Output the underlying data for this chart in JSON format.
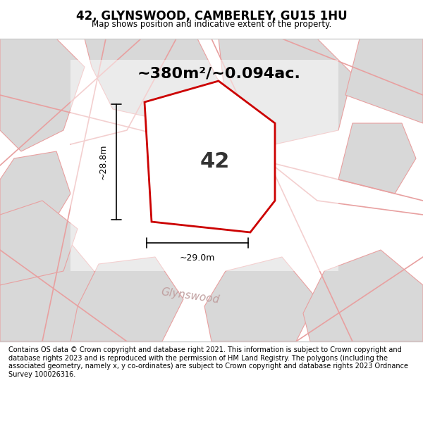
{
  "title": "42, GLYNSWOOD, CAMBERLEY, GU15 1HU",
  "subtitle": "Map shows position and indicative extent of the property.",
  "area_text": "~380m²/~0.094ac.",
  "property_label": "42",
  "width_label": "~29.0m",
  "height_label": "~28.8m",
  "footer_text": "Contains OS data © Crown copyright and database right 2021. This information is subject to Crown copyright and database rights 2023 and is reproduced with the permission of HM Land Registry. The polygons (including the associated geometry, namely x, y co-ordinates) are subject to Crown copyright and database rights 2023 Ordnance Survey 100026316.",
  "street_label": "Glynswood",
  "bg_color": "#f0f0f0",
  "map_bg": "#e8e8e8",
  "property_fill": "#ffffff",
  "property_edge": "#cc0000",
  "neighbor_fill": "#d8d8d8",
  "neighbor_edge": "#e8a0a0",
  "road_color": "#e8a0a0",
  "title_color": "#000000",
  "footer_color": "#000000"
}
